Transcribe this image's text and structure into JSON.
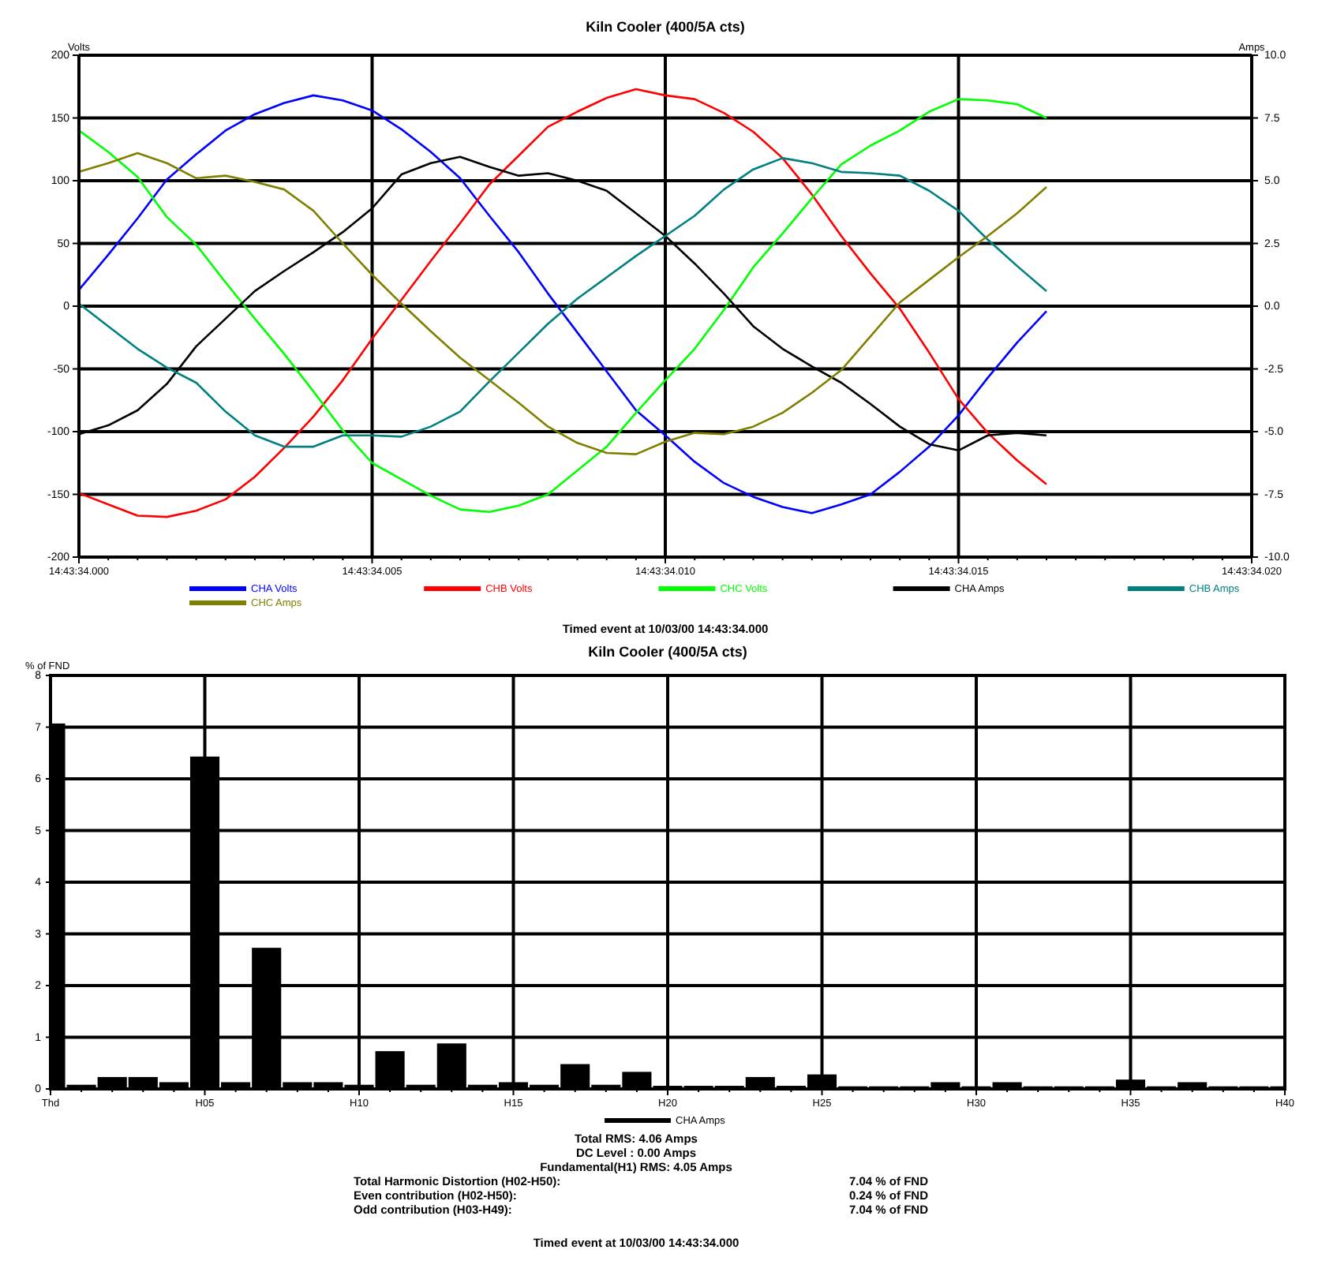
{
  "chart_data": [
    {
      "type": "line",
      "title": "Kiln Cooler (400/5A cts)",
      "ylabel": "Volts",
      "y2label": "Amps",
      "categories": [
        "14:43:34.000",
        null,
        null,
        null,
        null,
        null,
        null,
        null,
        null,
        null,
        "14:43:34.005",
        null,
        null,
        null,
        null,
        null,
        null,
        null,
        null,
        null,
        "14:43:34.010",
        null,
        null,
        null,
        null,
        null,
        null,
        null,
        null,
        null,
        "14:43:34.015",
        null,
        null,
        null,
        null,
        null,
        null,
        null,
        null,
        null,
        "14:43:34.020"
      ],
      "ylim": [
        -200,
        200
      ],
      "yticks": [
        -200,
        -150,
        -100,
        -50,
        0,
        50,
        100,
        150,
        200
      ],
      "y2lim": [
        -10,
        10
      ],
      "y2ticks": [
        {
          "value": -10,
          "label": "-10.0"
        },
        {
          "value": -7.5,
          "label": "-7.5"
        },
        {
          "value": -5,
          "label": "-5.0"
        },
        {
          "value": -2.5,
          "label": "-2.5"
        },
        {
          "value": 0,
          "label": "0.0"
        },
        {
          "value": 2.5,
          "label": "2.5"
        },
        {
          "value": 5,
          "label": "5.0"
        },
        {
          "value": 7.5,
          "label": "7.5"
        },
        {
          "value": 10,
          "label": "10.0"
        }
      ],
      "grid": true,
      "legend": "bottom",
      "line_style": "solid",
      "annotations": [
        "Timed event at 10/03/00 14:43:34.000"
      ],
      "series": [
        {
          "name": "CHA Volts",
          "color": "#0000ff",
          "values": [
            13,
            41,
            70,
            101,
            121,
            140,
            153,
            162,
            168,
            164,
            156,
            141,
            123,
            102,
            72,
            43,
            10,
            -21,
            -52,
            -83,
            -103,
            -124,
            -141,
            -152,
            -160,
            -165,
            -158,
            -150,
            -132,
            -112,
            -87,
            -57,
            -29,
            -4,
            null,
            null,
            null,
            null,
            null,
            null,
            null
          ]
        },
        {
          "name": "CHB Volts",
          "color": "#ff0000",
          "values": [
            -149,
            -158,
            -167,
            -168,
            -163,
            -154,
            -136,
            -113,
            -88,
            -59,
            -26,
            5,
            36,
            66,
            97,
            120,
            143,
            155,
            166,
            173,
            168,
            165,
            154,
            139,
            118,
            89,
            56,
            26,
            -2,
            -37,
            -74,
            -101,
            -123,
            -142,
            null,
            null,
            null,
            null,
            null,
            null,
            null
          ]
        },
        {
          "name": "CHC Volts",
          "color": "#00ff00",
          "values": [
            140,
            123,
            103,
            71,
            49,
            19,
            -10,
            -38,
            -68,
            -99,
            -125,
            -138,
            -151,
            -162,
            -164,
            -159,
            -150,
            -131,
            -112,
            -85,
            -59,
            -34,
            -3,
            31,
            58,
            86,
            113,
            128,
            140,
            155,
            165,
            164,
            161,
            150,
            null,
            null,
            null,
            null,
            null,
            null,
            null
          ]
        },
        {
          "name": "CHA Amps",
          "color": "#000000",
          "axis": "y2",
          "values": [
            -5.1,
            -4.75,
            -4.15,
            -3.1,
            -1.6,
            -0.5,
            0.6,
            1.4,
            2.15,
            2.95,
            3.9,
            5.25,
            5.7,
            5.95,
            5.55,
            5.2,
            5.3,
            5,
            4.6,
            3.7,
            2.8,
            1.7,
            0.5,
            -0.8,
            -1.7,
            -2.4,
            -3.05,
            -3.9,
            -4.8,
            -5.5,
            -5.75,
            -5.15,
            -5.05,
            -5.15,
            null,
            null,
            null,
            null,
            null,
            null,
            null
          ]
        },
        {
          "name": "CHB Amps",
          "color": "#008080",
          "axis": "y2",
          "values": [
            0.1,
            -0.8,
            -1.7,
            -2.45,
            -3.05,
            -4.2,
            -5.15,
            -5.6,
            -5.6,
            -5.15,
            -5.15,
            -5.2,
            -4.8,
            -4.2,
            -3,
            -1.85,
            -0.7,
            0.3,
            1.15,
            2,
            2.8,
            3.6,
            4.65,
            5.45,
            5.9,
            5.7,
            5.35,
            5.3,
            5.2,
            4.6,
            3.8,
            2.65,
            1.6,
            0.6,
            null,
            null,
            null,
            null,
            null,
            null,
            null
          ]
        },
        {
          "name": "CHC Amps",
          "color": "#808000",
          "axis": "y2",
          "values": [
            5.35,
            5.7,
            6.1,
            5.7,
            5.1,
            5.2,
            4.95,
            4.65,
            3.8,
            2.5,
            1.25,
            0.1,
            -1,
            -2.05,
            -2.95,
            -3.85,
            -4.8,
            -5.45,
            -5.85,
            -5.9,
            -5.4,
            -5.05,
            -5.1,
            -4.8,
            -4.25,
            -3.45,
            -2.55,
            -1.2,
            0.15,
            1.05,
            1.95,
            2.8,
            3.7,
            4.75,
            null,
            null,
            null,
            null,
            null,
            null,
            null
          ]
        }
      ]
    },
    {
      "type": "bar",
      "title": "Kiln Cooler (400/5A cts)",
      "ylabel": "% of FND",
      "categories": [
        "Thd",
        null,
        null,
        null,
        null,
        "H05",
        null,
        null,
        null,
        null,
        "H10",
        null,
        null,
        null,
        null,
        "H15",
        null,
        null,
        null,
        null,
        "H20",
        null,
        null,
        null,
        null,
        "H25",
        null,
        null,
        null,
        null,
        "H30",
        null,
        null,
        null,
        null,
        "H35",
        null,
        null,
        null,
        null,
        "H40"
      ],
      "ylim": [
        0,
        8
      ],
      "yticks": [
        0,
        1,
        2,
        3,
        4,
        5,
        6,
        7,
        8
      ],
      "grid": true,
      "legend": "bottom",
      "series": [
        {
          "name": "CHA Amps",
          "color": "#000000",
          "values": [
            7.04,
            0.05,
            0.2,
            0.2,
            0.1,
            6.4,
            0.1,
            2.7,
            0.1,
            0.1,
            0.05,
            0.7,
            0.05,
            0.85,
            0.05,
            0.1,
            0.05,
            0.45,
            0.05,
            0.3,
            0.03,
            0.03,
            0.03,
            0.2,
            0.03,
            0.25,
            0.02,
            0.02,
            0.02,
            0.1,
            0.02,
            0.1,
            0.02,
            0.02,
            0.02,
            0.15,
            0.02,
            0.1,
            0.02,
            0.02,
            0.02
          ]
        }
      ],
      "annotations": [
        "Total RMS: 4.06 Amps",
        "DC Level : 0.00 Amps",
        "Fundamental(H1) RMS: 4.05 Amps",
        "Total Harmonic Distortion (H02-H50):",
        "7.04 % of FND",
        "Even contribution (H02-H50):",
        "0.24 % of FND",
        "Odd  contribution (H03-H49):",
        "7.04 % of FND",
        "Timed event at 10/03/00 14:43:34.000"
      ]
    }
  ]
}
